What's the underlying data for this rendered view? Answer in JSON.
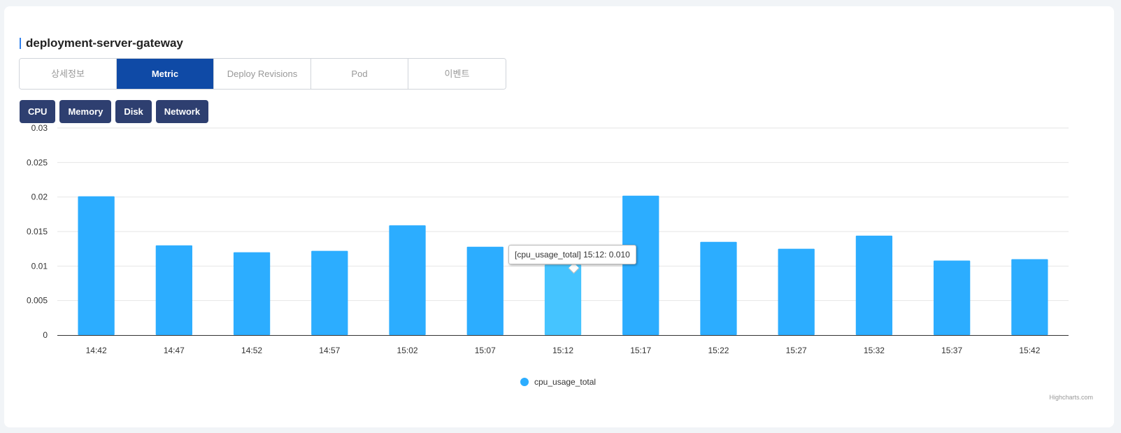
{
  "header": {
    "title": "deployment-server-gateway"
  },
  "tabs": [
    {
      "label": "상세정보",
      "active": false
    },
    {
      "label": "Metric",
      "active": true
    },
    {
      "label": "Deploy Revisions",
      "active": false
    },
    {
      "label": "Pod",
      "active": false
    },
    {
      "label": "이벤트",
      "active": false
    }
  ],
  "metric_buttons": [
    "CPU",
    "Memory",
    "Disk",
    "Network"
  ],
  "colors": {
    "bar": "#2cadff",
    "bar_hover": "#45c4ff",
    "tab_active": "#0f4aa6",
    "metric_button": "#2e3f70",
    "title_accent": "#2f80ed"
  },
  "tooltip": {
    "text": "[cpu_usage_total] 15:12: 0.010"
  },
  "credits": "Highcharts.com",
  "chart_data": {
    "type": "bar",
    "categories": [
      "14:42",
      "14:47",
      "14:52",
      "14:57",
      "15:02",
      "15:07",
      "15:12",
      "15:17",
      "15:22",
      "15:27",
      "15:32",
      "15:37",
      "15:42"
    ],
    "series": [
      {
        "name": "cpu_usage_total",
        "values": [
          0.0201,
          0.013,
          0.012,
          0.0122,
          0.0159,
          0.0128,
          0.0102,
          0.0202,
          0.0135,
          0.0125,
          0.0144,
          0.0108,
          0.011
        ]
      }
    ],
    "highlighted_index": 6,
    "yticks": [
      "0",
      "0.005",
      "0.01",
      "0.015",
      "0.02",
      "0.025",
      "0.03"
    ],
    "ylim": [
      0,
      0.03
    ],
    "grid": true,
    "legend": "bottom-center",
    "title": "",
    "xlabel": "",
    "ylabel": ""
  }
}
